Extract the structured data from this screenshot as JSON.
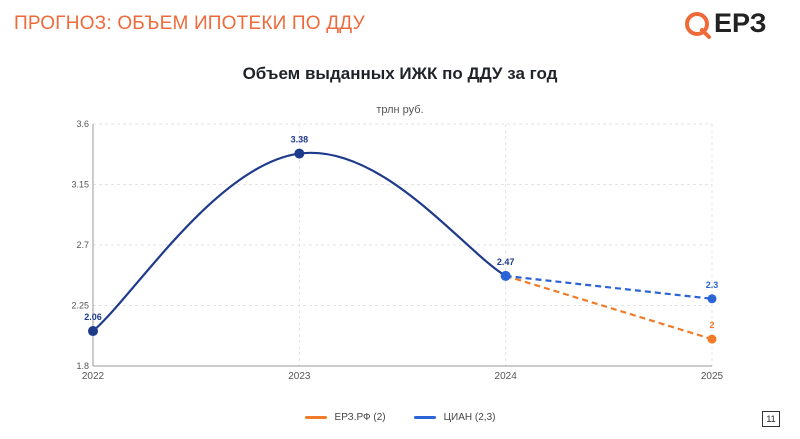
{
  "header": {
    "title": "ПРОГНОЗ: ОБЪЕМ ИПОТЕКИ ПО ДДУ"
  },
  "logo": {
    "text": "ЕРЗ",
    "color": "#ef6a3a"
  },
  "chart_data": {
    "type": "line",
    "title": "Объем выданных ИЖК по ДДУ за год",
    "unit_label": "трлн руб.",
    "x_ticks": [
      "2022",
      "2023",
      "2024",
      "2025"
    ],
    "y_ticks": [
      "1.8",
      "2.25",
      "2.7",
      "3.15",
      "3.6"
    ],
    "ylim": [
      1.8,
      3.6
    ],
    "grid": true,
    "legend_position": "bottom",
    "history": {
      "color": "#1e3a8a",
      "points": [
        {
          "x": "2022",
          "y": 2.06,
          "label": "2.06"
        },
        {
          "x": "2023",
          "y": 3.38,
          "label": "3.38"
        },
        {
          "x": "2024",
          "y": 2.47,
          "label": "2.47"
        }
      ]
    },
    "series": [
      {
        "name": "ЕРЗ.РФ (2)",
        "color": "#f07c2a",
        "from": {
          "x": "2024",
          "y": 2.47
        },
        "to": {
          "x": "2025",
          "y": 2.0,
          "label": "2"
        }
      },
      {
        "name": "ЦИАН (2,3)",
        "color": "#2a64d6",
        "from": {
          "x": "2024",
          "y": 2.47
        },
        "to": {
          "x": "2025",
          "y": 2.3,
          "label": "2.3"
        }
      }
    ]
  },
  "page_number": "11"
}
